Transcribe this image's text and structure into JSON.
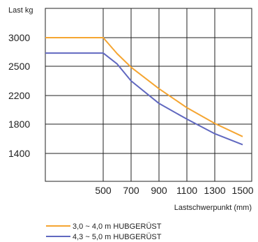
{
  "chart_data": {
    "type": "line",
    "title": "",
    "ylabel": "Last kg",
    "xlabel": "Lastschwerpunkt (mm)",
    "x_tick_labels": [
      "500",
      "700",
      "900",
      "1100",
      "1300",
      "1500"
    ],
    "y_tick_labels": [
      "3000",
      "2500",
      "2200",
      "1800",
      "1400"
    ],
    "grid": true,
    "legend_position": "bottom-left",
    "series": [
      {
        "name": "3,0 ~ 4,0 m HUBGERÜST",
        "color": "#f5a531",
        "points": [
          [
            300,
            3000
          ],
          [
            500,
            3000
          ],
          [
            600,
            2720
          ],
          [
            700,
            2490
          ],
          [
            900,
            2270
          ],
          [
            1100,
            2030
          ],
          [
            1300,
            1810
          ],
          [
            1500,
            1630
          ]
        ]
      },
      {
        "name": "4,3 ~ 5,0 m HUBGERÜST",
        "color": "#6068c0",
        "points": [
          [
            300,
            2730
          ],
          [
            500,
            2730
          ],
          [
            600,
            2540
          ],
          [
            700,
            2350
          ],
          [
            900,
            2090
          ],
          [
            1100,
            1870
          ],
          [
            1300,
            1670
          ],
          [
            1500,
            1520
          ]
        ]
      }
    ]
  }
}
